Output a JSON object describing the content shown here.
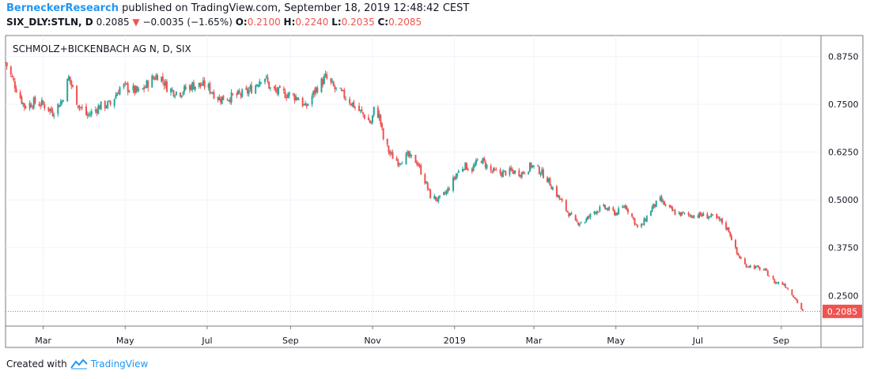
{
  "header": {
    "author": "BerneckerResearch",
    "published_text": "published on TradingView.com, September 18, 2019 12:48:42 CEST",
    "symbol": "SIX_DLY:STLN, D",
    "last": "0.2085",
    "change": "−0.0035 (−1.65%)",
    "open_label": "O:",
    "open": "0.2100",
    "high_label": "H:",
    "high": "0.2240",
    "low_label": "L:",
    "low": "0.2035",
    "close_label": "C:",
    "close": "0.2085"
  },
  "chart_data": {
    "type": "candlestick",
    "title": "SCHMOLZ+BICKENBACH AG N, D, SIX",
    "y_ticks": [
      "0.8750",
      "0.7500",
      "0.6250",
      "0.5000",
      "0.3750",
      "0.2500"
    ],
    "ylim": [
      0.17,
      0.93
    ],
    "last_price_label": "0.2085",
    "last_price": 0.2085,
    "x_ticks": [
      "Mar",
      "May",
      "Jul",
      "Sep",
      "Nov",
      "2019",
      "Mar",
      "May",
      "Jul",
      "Sep"
    ],
    "grid": true,
    "up_color": "#26a69a",
    "down_color": "#ef5350",
    "price_series": [
      [
        "2018-02-01",
        0.86
      ],
      [
        "2018-02-08",
        0.8
      ],
      [
        "2018-02-15",
        0.745
      ],
      [
        "2018-02-22",
        0.755
      ],
      [
        "2018-03-01",
        0.75
      ],
      [
        "2018-03-08",
        0.73
      ],
      [
        "2018-03-15",
        0.76
      ],
      [
        "2018-03-20",
        0.82
      ],
      [
        "2018-03-27",
        0.75
      ],
      [
        "2018-04-03",
        0.72
      ],
      [
        "2018-04-12",
        0.745
      ],
      [
        "2018-04-20",
        0.75
      ],
      [
        "2018-04-28",
        0.8
      ],
      [
        "2018-05-05",
        0.79
      ],
      [
        "2018-05-12",
        0.78
      ],
      [
        "2018-05-19",
        0.81
      ],
      [
        "2018-05-26",
        0.83
      ],
      [
        "2018-06-02",
        0.79
      ],
      [
        "2018-06-10",
        0.78
      ],
      [
        "2018-06-20",
        0.8
      ],
      [
        "2018-06-30",
        0.8
      ],
      [
        "2018-07-10",
        0.765
      ],
      [
        "2018-07-20",
        0.77
      ],
      [
        "2018-07-30",
        0.78
      ],
      [
        "2018-08-06",
        0.8
      ],
      [
        "2018-08-12",
        0.83
      ],
      [
        "2018-08-17",
        0.79
      ],
      [
        "2018-08-24",
        0.78
      ],
      [
        "2018-09-01",
        0.775
      ],
      [
        "2018-09-08",
        0.765
      ],
      [
        "2018-09-12",
        0.74
      ],
      [
        "2018-09-20",
        0.79
      ],
      [
        "2018-09-27",
        0.82
      ],
      [
        "2018-10-04",
        0.79
      ],
      [
        "2018-10-12",
        0.77
      ],
      [
        "2018-10-20",
        0.74
      ],
      [
        "2018-10-26",
        0.72
      ],
      [
        "2018-10-31",
        0.7
      ],
      [
        "2018-11-02",
        0.735
      ],
      [
        "2018-11-06",
        0.72
      ],
      [
        "2018-11-09",
        0.66
      ],
      [
        "2018-11-14",
        0.62
      ],
      [
        "2018-11-20",
        0.6
      ],
      [
        "2018-11-27",
        0.615
      ],
      [
        "2018-12-04",
        0.6
      ],
      [
        "2018-12-10",
        0.55
      ],
      [
        "2018-12-14",
        0.51
      ],
      [
        "2018-12-20",
        0.5
      ],
      [
        "2018-12-26",
        0.52
      ],
      [
        "2019-01-03",
        0.57
      ],
      [
        "2019-01-08",
        0.59
      ],
      [
        "2019-01-14",
        0.58
      ],
      [
        "2019-01-20",
        0.61
      ],
      [
        "2019-01-28",
        0.575
      ],
      [
        "2019-02-05",
        0.57
      ],
      [
        "2019-02-12",
        0.575
      ],
      [
        "2019-02-20",
        0.57
      ],
      [
        "2019-02-27",
        0.59
      ],
      [
        "2019-03-04",
        0.58
      ],
      [
        "2019-03-10",
        0.56
      ],
      [
        "2019-03-17",
        0.52
      ],
      [
        "2019-03-25",
        0.475
      ],
      [
        "2019-04-01",
        0.44
      ],
      [
        "2019-04-08",
        0.445
      ],
      [
        "2019-04-15",
        0.47
      ],
      [
        "2019-04-22",
        0.48
      ],
      [
        "2019-05-01",
        0.465
      ],
      [
        "2019-05-08",
        0.485
      ],
      [
        "2019-05-14",
        0.45
      ],
      [
        "2019-05-18",
        0.42
      ],
      [
        "2019-05-23",
        0.45
      ],
      [
        "2019-05-28",
        0.48
      ],
      [
        "2019-06-03",
        0.5
      ],
      [
        "2019-06-08",
        0.48
      ],
      [
        "2019-06-15",
        0.465
      ],
      [
        "2019-06-25",
        0.46
      ],
      [
        "2019-07-05",
        0.46
      ],
      [
        "2019-07-12",
        0.455
      ],
      [
        "2019-07-18",
        0.445
      ],
      [
        "2019-07-24",
        0.42
      ],
      [
        "2019-07-30",
        0.36
      ],
      [
        "2019-08-05",
        0.33
      ],
      [
        "2019-08-12",
        0.325
      ],
      [
        "2019-08-20",
        0.315
      ],
      [
        "2019-08-27",
        0.285
      ],
      [
        "2019-09-03",
        0.28
      ],
      [
        "2019-09-10",
        0.25
      ],
      [
        "2019-09-17",
        0.2085
      ]
    ]
  }
}
